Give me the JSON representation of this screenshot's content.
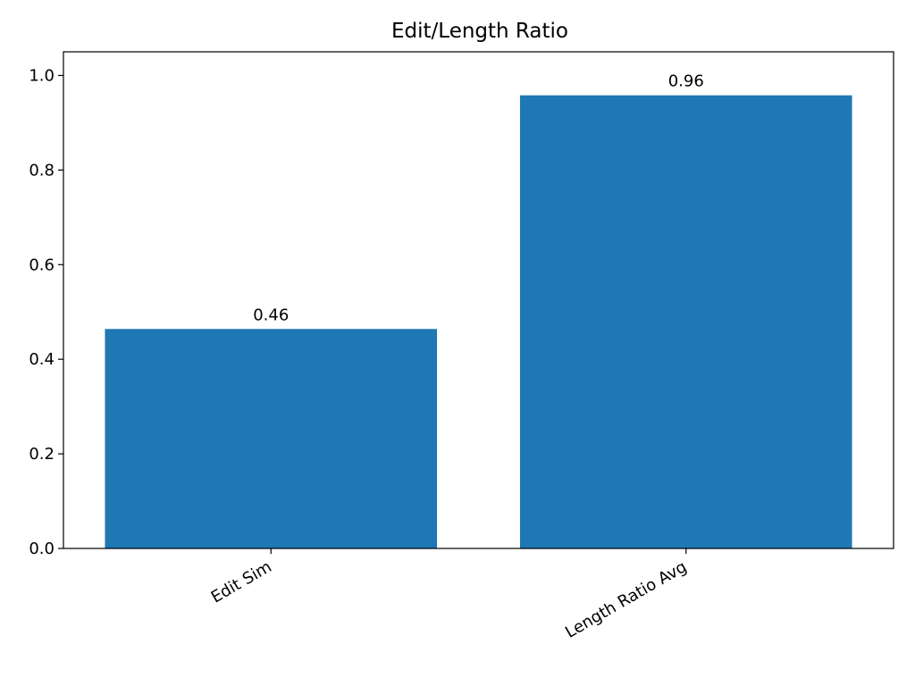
{
  "chart_data": {
    "type": "bar",
    "title": "Edit/Length Ratio",
    "categories": [
      "Edit Sim",
      "Length Ratio Avg"
    ],
    "values": [
      0.464,
      0.958
    ],
    "data_labels": [
      "0.46",
      "0.96"
    ],
    "ylim": [
      0,
      1.05
    ],
    "yticks": [
      0.0,
      0.2,
      0.4,
      0.6,
      0.8,
      1.0
    ],
    "ytick_labels": [
      "0.0",
      "0.2",
      "0.4",
      "0.6",
      "0.8",
      "1.0"
    ],
    "xlabel": "",
    "ylabel": "",
    "grid": false,
    "x_tick_rotation": "30 degrees",
    "bar_color": "#1f77b4"
  }
}
